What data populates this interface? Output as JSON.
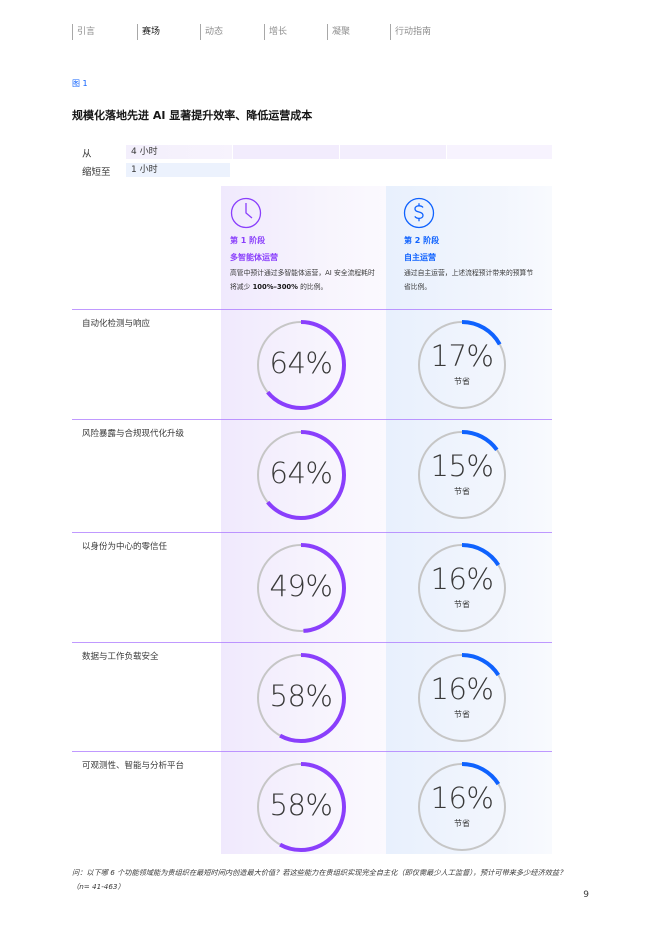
{
  "nav": {
    "items": [
      {
        "label": "引言",
        "active": false
      },
      {
        "label": "赛场",
        "active": true
      },
      {
        "label": "动态",
        "active": false
      },
      {
        "label": "增长",
        "active": false
      },
      {
        "label": "凝聚",
        "active": false
      },
      {
        "label": "行动指南",
        "active": false
      }
    ]
  },
  "figure_label": "图 1",
  "title": "规模化落地先进 AI 显著提升效率、降低运营成本",
  "legend": {
    "from_label": "从",
    "from_value": "4 小时",
    "to_label": "缩短至",
    "to_value": "1 小时"
  },
  "stages": [
    {
      "number": "第 1 阶段",
      "name": "多智能体运营",
      "desc_pre": "高管中预计通过多智能体运营，AI 安全流程耗时将减少 ",
      "desc_bold": "100%–300%",
      "desc_post": " 的比例。",
      "icon": "clock-icon",
      "color": "#8a3ffc"
    },
    {
      "number": "第 2 阶段",
      "name": "自主运营",
      "desc_pre": "通过自主运营，上述流程预计带来的预算节省比例。",
      "desc_bold": "",
      "desc_post": "",
      "icon": "dollar-icon",
      "color": "#0f62fe"
    }
  ],
  "rows": [
    {
      "label": "自动化检测与响应",
      "stage1": {
        "value": 64,
        "text": "64%"
      },
      "stage2": {
        "value": 17,
        "text": "17%",
        "sub": "节省"
      }
    },
    {
      "label": "风险暴露与合规现代化升级",
      "stage1": {
        "value": 64,
        "text": "64%"
      },
      "stage2": {
        "value": 15,
        "text": "15%",
        "sub": "节省"
      }
    },
    {
      "label": "以身份为中心的零信任",
      "stage1": {
        "value": 49,
        "text": "49%"
      },
      "stage2": {
        "value": 16,
        "text": "16%",
        "sub": "节省"
      }
    },
    {
      "label": "数据与工作负载安全",
      "stage1": {
        "value": 58,
        "text": "58%"
      },
      "stage2": {
        "value": 16,
        "text": "16%",
        "sub": "节省"
      }
    },
    {
      "label": "可观测性、智能与分析平台",
      "stage1": {
        "value": 58,
        "text": "58%"
      },
      "stage2": {
        "value": 16,
        "text": "16%",
        "sub": "节省"
      }
    }
  ],
  "colors": {
    "stage1": "#8a3ffc",
    "stage2": "#0f62fe",
    "ring_track": "#c6c6c6",
    "row_line": "#a56eff",
    "link_blue": "#0f62fe"
  },
  "footnote": "问：以下哪 6 个功能领域能为贵组织在最短时间内创造最大价值？若这些能力在贵组织实现完全自主化（即仅需最少人工监督），预计可带来多少经济效益？（n= 41-463）",
  "page_number": "9"
}
